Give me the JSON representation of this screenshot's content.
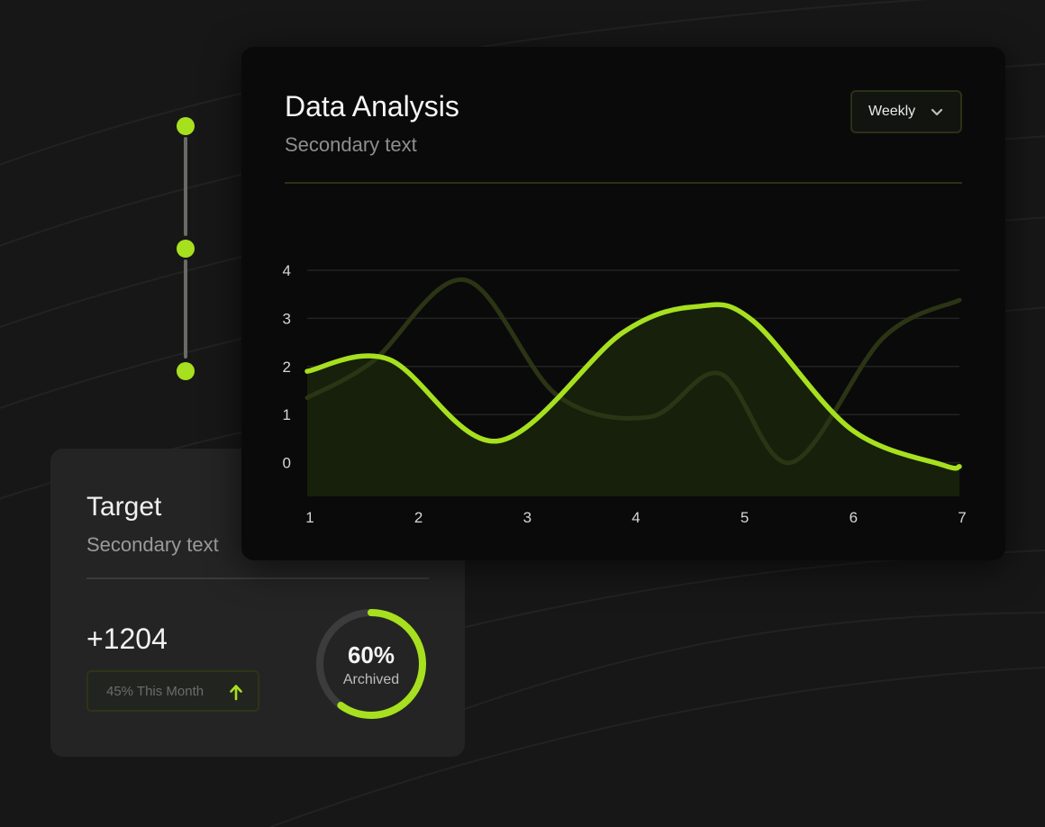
{
  "colors": {
    "accent": "#a7e01e",
    "background": "#171717",
    "card": "#242424",
    "chart_card": "#0a0a0a"
  },
  "analysis": {
    "title": "Data Analysis",
    "subtitle": "Secondary text",
    "period_select": {
      "value": "Weekly",
      "icon": "chevron-down-icon"
    }
  },
  "target": {
    "title": "Target",
    "subtitle": "Secondary text",
    "value": "+1204",
    "badge": {
      "label": "45% This Month",
      "icon": "arrow-up-icon"
    },
    "progress": {
      "percent": 60,
      "value_label": "60%",
      "label": "Archived"
    }
  },
  "stepper": {
    "steps": 3
  },
  "chart_data": {
    "type": "area",
    "x": [
      1,
      2,
      3,
      4,
      5,
      6,
      7
    ],
    "xticks": [
      "1",
      "2",
      "3",
      "4",
      "5",
      "6",
      "7"
    ],
    "yticks": [
      "0",
      "1",
      "2",
      "3",
      "4"
    ],
    "ylim": [
      -0.7,
      4
    ],
    "xlim": [
      1,
      7
    ],
    "grid": true,
    "series": [
      {
        "role": "primary",
        "color": "#a7e01e",
        "filled": true,
        "points": [
          [
            1,
            1.9
          ],
          [
            1.75,
            2.15
          ],
          [
            2.75,
            0.45
          ],
          [
            3.9,
            2.7
          ],
          [
            4.6,
            3.25
          ],
          [
            5.1,
            2.95
          ],
          [
            6,
            0.7
          ],
          [
            6.85,
            -0.05
          ],
          [
            7,
            -0.08
          ]
        ]
      },
      {
        "role": "secondary",
        "color": "#2b3414",
        "filled": false,
        "points": [
          [
            1,
            1.35
          ],
          [
            1.6,
            2.1
          ],
          [
            2.45,
            3.8
          ],
          [
            3.3,
            1.4
          ],
          [
            4.15,
            0.95
          ],
          [
            4.8,
            1.85
          ],
          [
            5.45,
            0
          ],
          [
            6.3,
            2.6
          ],
          [
            7,
            3.38
          ]
        ]
      }
    ]
  }
}
